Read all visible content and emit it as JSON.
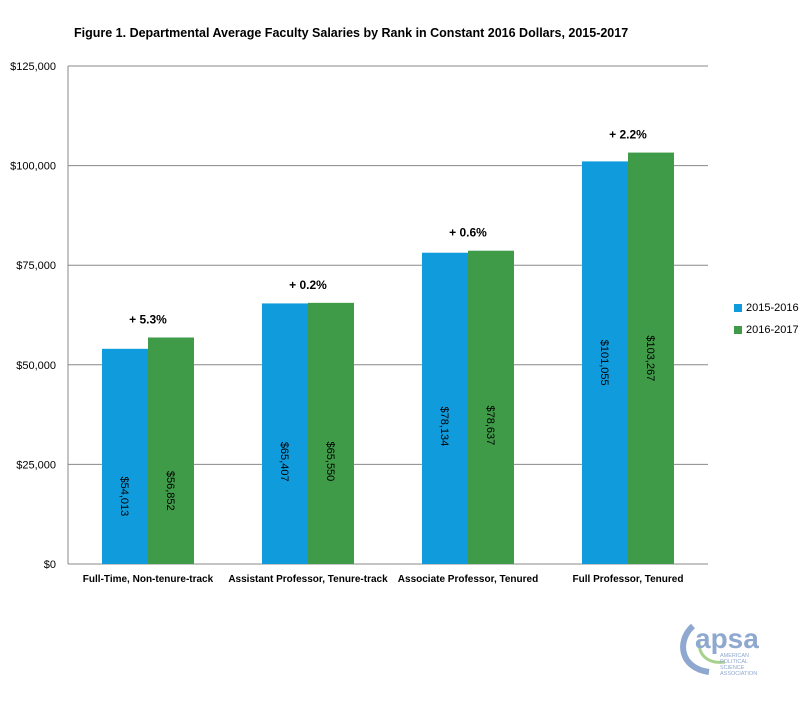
{
  "chart_data": {
    "type": "bar",
    "title": "Figure 1. Departmental Average Faculty Salaries by Rank in Constant 2016  Dollars, 2015-2017",
    "categories": [
      "Full-Time, Non-tenure-track",
      "Assistant Professor, Tenure-track",
      "Associate Professor, Tenured",
      "Full Professor, Tenured"
    ],
    "series": [
      {
        "name": "2015-2016",
        "values": [
          54013,
          65407,
          78134,
          101055
        ],
        "labels": [
          "$54,013",
          "$65,407",
          "$78,134",
          "$101,055"
        ],
        "color": "#109cdc"
      },
      {
        "name": "2016-2017",
        "values": [
          56852,
          65550,
          78637,
          103267
        ],
        "labels": [
          "$56,852",
          "$65,550",
          "$78,637",
          "$103,267"
        ],
        "color": "#3f9b47"
      }
    ],
    "annotations": [
      "+ 5.3%",
      "+ 0.2%",
      "+ 0.6%",
      "+ 2.2%"
    ],
    "ylim": [
      0,
      125000
    ],
    "yticks": [
      "$0",
      "$25,000",
      "$50,000",
      "$75,000",
      "$100,000",
      "$125,000"
    ],
    "grid": true,
    "legend_position": "right"
  },
  "logo": {
    "text": "apsa",
    "subtitle": "AMERICAN POLITICAL SCIENCE ASSOCIATION"
  }
}
